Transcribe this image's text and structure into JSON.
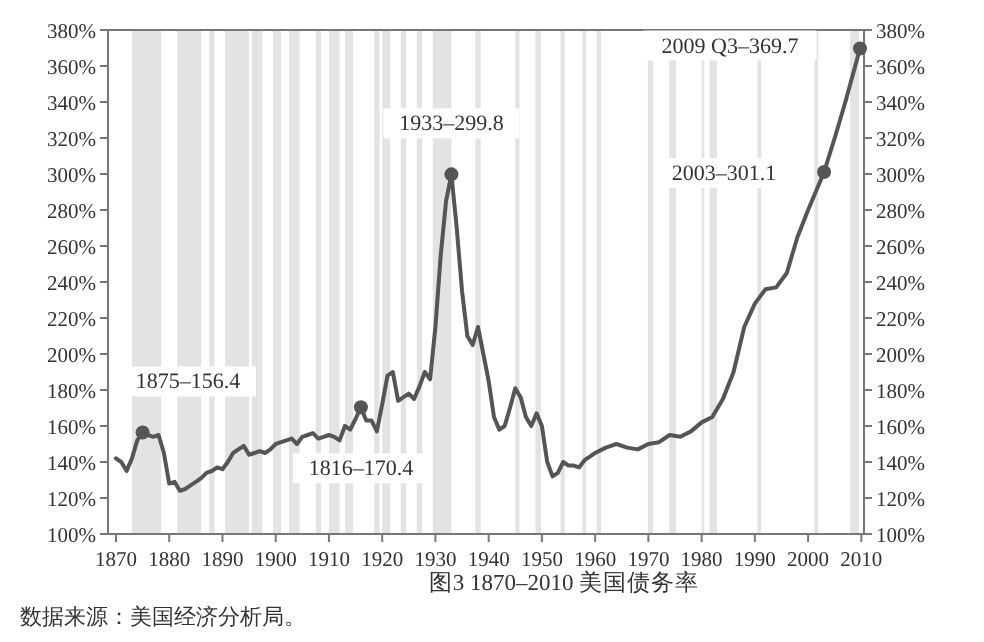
{
  "chart_data": {
    "type": "line",
    "title": "图3  1870–2010 美国债务率",
    "x": [
      1870,
      1871,
      1872,
      1873,
      1874,
      1875,
      1876,
      1877,
      1878,
      1879,
      1880,
      1881,
      1882,
      1883,
      1884,
      1885,
      1886,
      1887,
      1888,
      1889,
      1890,
      1891,
      1892,
      1893,
      1894,
      1895,
      1896,
      1897,
      1898,
      1899,
      1900,
      1901,
      1902,
      1903,
      1904,
      1905,
      1906,
      1907,
      1908,
      1909,
      1910,
      1911,
      1912,
      1913,
      1914,
      1915,
      1916,
      1917,
      1918,
      1919,
      1920,
      1921,
      1922,
      1923,
      1924,
      1925,
      1926,
      1927,
      1928,
      1929,
      1930,
      1931,
      1932,
      1933,
      1934,
      1935,
      1936,
      1937,
      1938,
      1939,
      1940,
      1941,
      1942,
      1943,
      1944,
      1945,
      1946,
      1947,
      1948,
      1949,
      1950,
      1951,
      1952,
      1953,
      1954,
      1955,
      1956,
      1957,
      1958,
      1959,
      1960,
      1962,
      1964,
      1966,
      1968,
      1970,
      1972,
      1974,
      1976,
      1978,
      1980,
      1982,
      1984,
      1986,
      1988,
      1990,
      1992,
      1994,
      1996,
      1998,
      2000,
      2003,
      2005,
      2007,
      2009.75
    ],
    "series": [
      {
        "color": "#555555",
        "values": [
          142,
          140,
          135,
          142,
          152,
          156.4,
          155,
          154,
          155,
          145,
          128,
          129,
          124,
          125,
          127,
          129,
          131,
          134,
          135,
          137,
          136,
          140,
          145,
          147,
          149,
          144,
          145,
          146,
          145,
          147,
          150,
          151,
          152,
          153,
          150,
          154,
          155,
          156,
          153,
          154,
          155,
          154,
          152,
          160,
          158,
          164,
          170.4,
          163,
          163,
          157,
          172,
          188,
          190,
          174,
          176,
          178,
          175,
          182,
          190,
          186,
          215,
          255,
          285,
          299.8,
          270,
          235,
          210,
          205,
          215,
          200,
          185,
          165,
          158,
          160,
          170,
          181,
          176,
          165,
          160,
          167,
          160,
          140,
          132,
          134,
          140,
          138,
          138,
          137,
          141,
          143,
          145,
          148,
          150,
          148,
          147,
          150,
          151,
          155,
          154,
          157,
          162,
          165,
          175,
          190,
          215,
          228,
          236,
          237,
          245,
          265,
          280,
          301.1,
          320,
          340,
          369.7
        ]
      }
    ],
    "xlim": [
      1868.5,
      2010.5
    ],
    "xticks": [
      1870,
      1880,
      1890,
      1900,
      1910,
      1920,
      1930,
      1940,
      1950,
      1960,
      1970,
      1980,
      1990,
      2000,
      2010
    ],
    "ylim": [
      100,
      380
    ],
    "yticks": [
      {
        "value": 100,
        "label": "100%"
      },
      {
        "value": 120,
        "label": "120%"
      },
      {
        "value": 140,
        "label": "140%"
      },
      {
        "value": 160,
        "label": "160%"
      },
      {
        "value": 180,
        "label": "180%"
      },
      {
        "value": 200,
        "label": "200%"
      },
      {
        "value": 220,
        "label": "220%"
      },
      {
        "value": 240,
        "label": "240%"
      },
      {
        "value": 260,
        "label": "260%"
      },
      {
        "value": 280,
        "label": "280%"
      },
      {
        "value": 300,
        "label": "300%"
      },
      {
        "value": 320,
        "label": "320%"
      },
      {
        "value": 340,
        "label": "340%"
      },
      {
        "value": 360,
        "label": "360%"
      },
      {
        "value": 380,
        "label": "380%"
      }
    ],
    "y2lim": [
      100,
      380
    ],
    "y2ticks": [
      {
        "value": 100,
        "label": "100%"
      },
      {
        "value": 120,
        "label": "120%"
      },
      {
        "value": 140,
        "label": "140%"
      },
      {
        "value": 160,
        "label": "160%"
      },
      {
        "value": 180,
        "label": "180%"
      },
      {
        "value": 200,
        "label": "200%"
      },
      {
        "value": 220,
        "label": "220%"
      },
      {
        "value": 240,
        "label": "240%"
      },
      {
        "value": 260,
        "label": "260%"
      },
      {
        "value": 280,
        "label": "280%"
      },
      {
        "value": 300,
        "label": "300%"
      },
      {
        "value": 320,
        "label": "320%"
      },
      {
        "value": 340,
        "label": "340%"
      },
      {
        "value": 360,
        "label": "360%"
      },
      {
        "value": 380,
        "label": "380%"
      }
    ],
    "grid": false,
    "bands": [
      {
        "axis": "x",
        "from": 1873,
        "to": 1878.5,
        "color": "#e3e3e3"
      },
      {
        "axis": "x",
        "from": 1881.5,
        "to": 1886,
        "color": "#e3e3e3"
      },
      {
        "axis": "x",
        "from": 1887.5,
        "to": 1888.5,
        "color": "#e3e3e3"
      },
      {
        "axis": "x",
        "from": 1890.5,
        "to": 1895,
        "color": "#e3e3e3"
      },
      {
        "axis": "x",
        "from": 1895.5,
        "to": 1897.5,
        "color": "#e3e3e3"
      },
      {
        "axis": "x",
        "from": 1899.5,
        "to": 1901,
        "color": "#e3e3e3"
      },
      {
        "axis": "x",
        "from": 1902.5,
        "to": 1904.5,
        "color": "#e3e3e3"
      },
      {
        "axis": "x",
        "from": 1907.5,
        "to": 1908.5,
        "color": "#e3e3e3"
      },
      {
        "axis": "x",
        "from": 1910,
        "to": 1912,
        "color": "#e3e3e3"
      },
      {
        "axis": "x",
        "from": 1913,
        "to": 1914.5,
        "color": "#e3e3e3"
      },
      {
        "axis": "x",
        "from": 1918.5,
        "to": 1919.5,
        "color": "#e3e3e3"
      },
      {
        "axis": "x",
        "from": 1920,
        "to": 1921.5,
        "color": "#e3e3e3"
      },
      {
        "axis": "x",
        "from": 1923.5,
        "to": 1924.5,
        "color": "#e3e3e3"
      },
      {
        "axis": "x",
        "from": 1926.5,
        "to": 1927.5,
        "color": "#e3e3e3"
      },
      {
        "axis": "x",
        "from": 1929.5,
        "to": 1933,
        "color": "#e3e3e3"
      },
      {
        "axis": "x",
        "from": 1937.5,
        "to": 1938.5,
        "color": "#e3e3e3"
      },
      {
        "axis": "x",
        "from": 1945,
        "to": 1945.8,
        "color": "#e3e3e3"
      },
      {
        "axis": "x",
        "from": 1948.8,
        "to": 1949.8,
        "color": "#e3e3e3"
      },
      {
        "axis": "x",
        "from": 1953.5,
        "to": 1954.3,
        "color": "#e3e3e3"
      },
      {
        "axis": "x",
        "from": 1957.6,
        "to": 1958.3,
        "color": "#e3e3e3"
      },
      {
        "axis": "x",
        "from": 1960.3,
        "to": 1961.1,
        "color": "#e3e3e3"
      },
      {
        "axis": "x",
        "from": 1969.9,
        "to": 1970.9,
        "color": "#e3e3e3"
      },
      {
        "axis": "x",
        "from": 1973.9,
        "to": 1975.2,
        "color": "#e3e3e3"
      },
      {
        "axis": "x",
        "from": 1980,
        "to": 1980.5,
        "color": "#e3e3e3"
      },
      {
        "axis": "x",
        "from": 1981.5,
        "to": 1982.9,
        "color": "#e3e3e3"
      },
      {
        "axis": "x",
        "from": 1990.5,
        "to": 1991.2,
        "color": "#e3e3e3"
      },
      {
        "axis": "x",
        "from": 2001.2,
        "to": 2001.9,
        "color": "#e3e3e3"
      },
      {
        "axis": "x",
        "from": 2007.9,
        "to": 2009.5,
        "color": "#e3e3e3"
      }
    ],
    "annotations": [
      {
        "text": "1875–156.4",
        "x": 1875,
        "y": 156.4
      },
      {
        "text": "1816–170.4",
        "x": 1916,
        "y": 170.4
      },
      {
        "text": "1933–299.8",
        "x": 1933,
        "y": 299.8
      },
      {
        "text": "2003–301.1",
        "x": 2003,
        "y": 301.1
      },
      {
        "text": "2009 Q3–369.7",
        "x": 2009.75,
        "y": 369.7
      },
      "数据来源：美国经济分析局。"
    ]
  }
}
